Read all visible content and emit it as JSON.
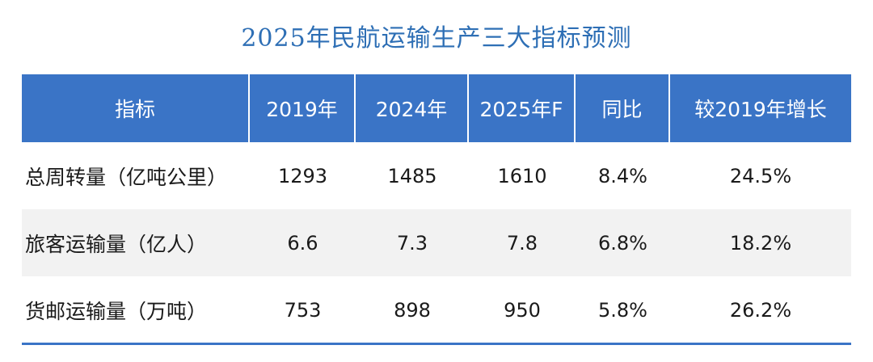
{
  "title": "2025年民航运输生产三大指标预测",
  "chart_data": {
    "type": "table",
    "title": "2025年民航运输生产三大指标预测",
    "columns": [
      "指标",
      "2019年",
      "2024年",
      "2025年F",
      "同比",
      "较2019年增长"
    ],
    "rows": [
      [
        "总周转量（亿吨公里）",
        "1293",
        "1485",
        "1610",
        "8.4%",
        "24.5%"
      ],
      [
        "旅客运输量（亿人）",
        "6.6",
        "7.3",
        "7.8",
        "6.8%",
        "18.2%"
      ],
      [
        "货邮运输量（万吨）",
        "753",
        "898",
        "950",
        "5.8%",
        "26.2%"
      ]
    ]
  },
  "colors": {
    "title": "#2e6fb5",
    "header_bg": "#3a74c6",
    "header_text": "#ffffff",
    "shaded_row": "#f2f2f2",
    "rule": "#3a74c6"
  }
}
